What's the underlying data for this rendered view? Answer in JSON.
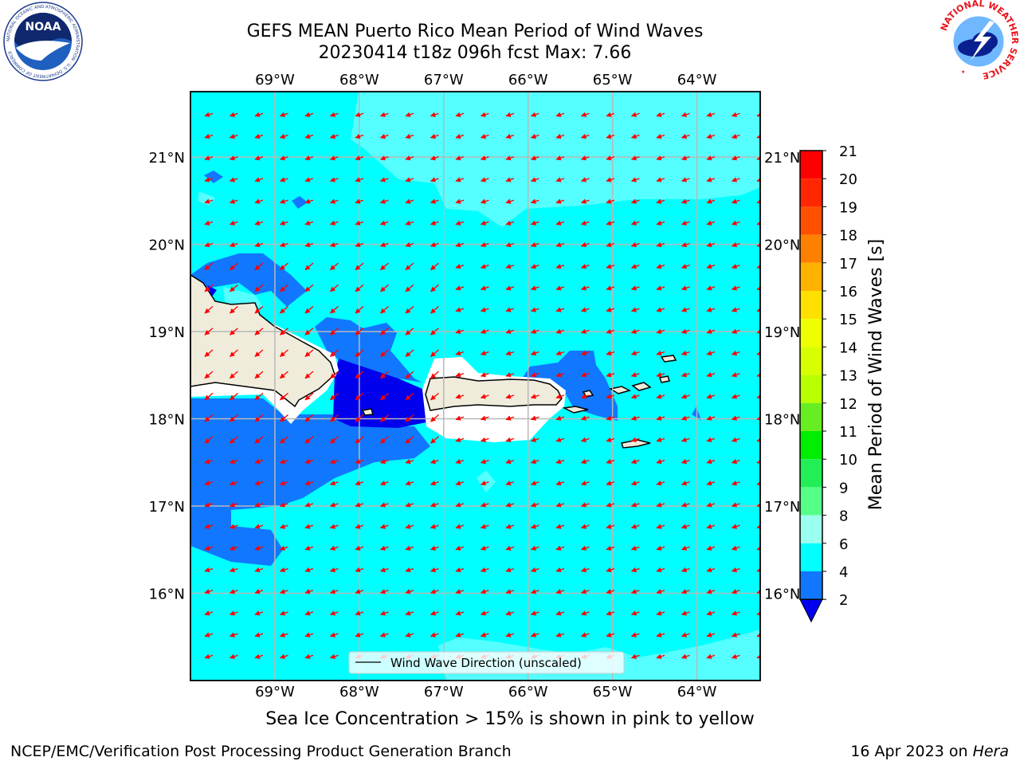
{
  "title": {
    "line1": "GEFS MEAN Puerto Rico Mean Period of Wind Waves",
    "line2": "20230414 t18z 096h fcst   Max: 7.66"
  },
  "map": {
    "lon_ticks": [
      "69°W",
      "68°W",
      "67°W",
      "66°W",
      "65°W",
      "64°W"
    ],
    "lat_ticks": [
      "21°N",
      "20°N",
      "19°N",
      "18°N",
      "17°N",
      "16°N"
    ],
    "lon_range": [
      -70.0,
      -63.25
    ],
    "lat_range": [
      15.0,
      21.75
    ],
    "grid": true,
    "land_color": "#efecdc",
    "legend": {
      "label": "Wind Wave Direction (unscaled)",
      "placement": "lower-center"
    },
    "arrow_color": "#ff0000",
    "wave_direction": "southwestward"
  },
  "colorbar": {
    "label": "Mean Period of Wind Waves [s]",
    "ticks": [
      "21",
      "20",
      "19",
      "18",
      "17",
      "16",
      "15",
      "14",
      "13",
      "12",
      "11",
      "10",
      "9",
      "8",
      "6",
      "4",
      "2"
    ],
    "levels": [
      {
        "from": 20,
        "to": 21,
        "color": "#ff0000"
      },
      {
        "from": 19,
        "to": 20,
        "color": "#ff2600"
      },
      {
        "from": 18,
        "to": 19,
        "color": "#ff5000"
      },
      {
        "from": 17,
        "to": 18,
        "color": "#ff8000"
      },
      {
        "from": 16,
        "to": 17,
        "color": "#ffb200"
      },
      {
        "from": 15,
        "to": 16,
        "color": "#ffe000"
      },
      {
        "from": 14,
        "to": 15,
        "color": "#eeff00"
      },
      {
        "from": 13,
        "to": 14,
        "color": "#d8ff00"
      },
      {
        "from": 12,
        "to": 13,
        "color": "#b8ff00"
      },
      {
        "from": 11,
        "to": 12,
        "color": "#66ee22"
      },
      {
        "from": 10,
        "to": 11,
        "color": "#00ee00"
      },
      {
        "from": 9,
        "to": 10,
        "color": "#22ee55"
      },
      {
        "from": 8,
        "to": 9,
        "color": "#55ff88"
      },
      {
        "from": 6,
        "to": 8,
        "color": "#9affee"
      },
      {
        "from": 4,
        "to": 6,
        "color": "#00ffff"
      },
      {
        "from": 2,
        "to": 4,
        "color": "#1177ff"
      },
      {
        "from": 0,
        "to": 2,
        "color": "#0000ee"
      }
    ],
    "max_value": 7.66
  },
  "caption": "Sea Ice Concentration > 15% is shown in pink to yellow",
  "footer": {
    "left": "NCEP/EMC/Verification Post Processing Product Generation Branch",
    "date": "16 Apr 2023 on ",
    "machine": "Hera"
  },
  "logos": {
    "noaa": {
      "icon": "noaa-logo-icon",
      "text": "NOAA",
      "ring_text": "NATIONAL OCEANIC AND ATMOSPHERIC ADMINISTRATION · U.S. DEPARTMENT OF COMMERCE"
    },
    "nws": {
      "icon": "nws-logo-icon",
      "ring_text": "NATIONAL WEATHER SERVICE"
    }
  }
}
